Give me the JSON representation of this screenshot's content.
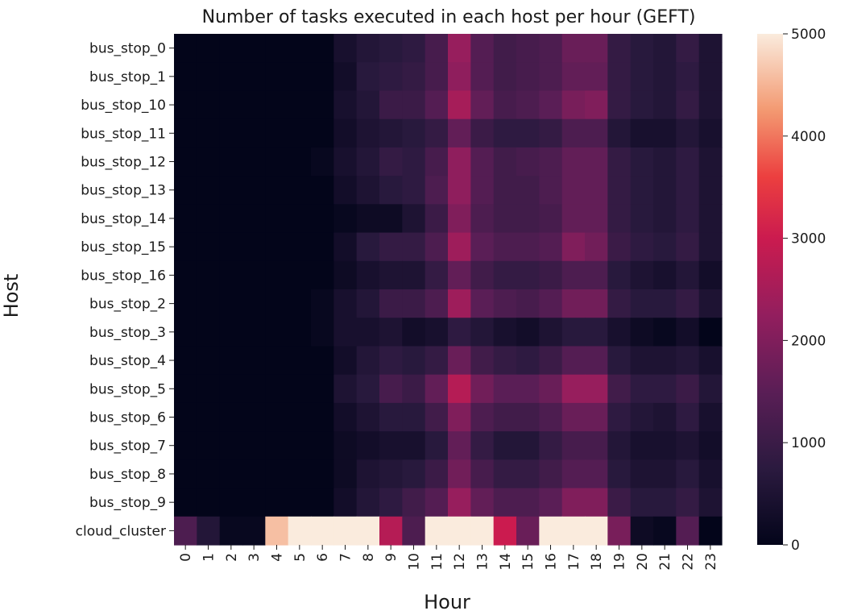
{
  "chart_data": {
    "type": "heatmap",
    "title": "Number of tasks executed in each host per hour (GEFT)",
    "xlabel": "Hour",
    "ylabel": "Host",
    "x": [
      "0",
      "1",
      "2",
      "3",
      "4",
      "5",
      "6",
      "7",
      "8",
      "9",
      "10",
      "11",
      "12",
      "13",
      "14",
      "15",
      "16",
      "17",
      "18",
      "19",
      "20",
      "21",
      "22",
      "23"
    ],
    "y": [
      "bus_stop_0",
      "bus_stop_1",
      "bus_stop_10",
      "bus_stop_11",
      "bus_stop_12",
      "bus_stop_13",
      "bus_stop_14",
      "bus_stop_15",
      "bus_stop_16",
      "bus_stop_2",
      "bus_stop_3",
      "bus_stop_4",
      "bus_stop_5",
      "bus_stop_6",
      "bus_stop_7",
      "bus_stop_8",
      "bus_stop_9",
      "cloud_cluster"
    ],
    "z": [
      [
        0,
        0,
        0,
        0,
        0,
        0,
        0,
        400,
        600,
        700,
        800,
        1200,
        2300,
        1400,
        1100,
        1200,
        1300,
        1700,
        1700,
        900,
        700,
        600,
        900,
        500
      ],
      [
        0,
        0,
        0,
        0,
        0,
        0,
        0,
        300,
        700,
        800,
        900,
        1200,
        2200,
        1400,
        1100,
        1200,
        1300,
        1600,
        1600,
        900,
        700,
        600,
        800,
        500
      ],
      [
        0,
        0,
        0,
        0,
        0,
        0,
        0,
        400,
        600,
        1000,
        1000,
        1400,
        2500,
        1600,
        1200,
        1300,
        1500,
        1900,
        2000,
        900,
        700,
        600,
        900,
        500
      ],
      [
        0,
        0,
        0,
        0,
        0,
        0,
        0,
        300,
        500,
        600,
        700,
        900,
        1600,
        1000,
        800,
        800,
        900,
        1300,
        1300,
        600,
        400,
        400,
        600,
        400
      ],
      [
        0,
        0,
        0,
        0,
        0,
        0,
        100,
        400,
        600,
        900,
        800,
        1200,
        2200,
        1400,
        1100,
        1200,
        1300,
        1600,
        1600,
        900,
        700,
        600,
        800,
        500
      ],
      [
        0,
        0,
        0,
        0,
        0,
        0,
        0,
        300,
        500,
        700,
        800,
        1300,
        2200,
        1400,
        1100,
        1100,
        1300,
        1600,
        1600,
        900,
        700,
        600,
        800,
        500
      ],
      [
        0,
        0,
        0,
        0,
        0,
        0,
        0,
        100,
        200,
        200,
        500,
        1000,
        2000,
        1300,
        1100,
        1100,
        1200,
        1600,
        1600,
        900,
        700,
        600,
        800,
        500
      ],
      [
        0,
        0,
        0,
        0,
        0,
        0,
        0,
        300,
        700,
        900,
        900,
        1300,
        2400,
        1500,
        1300,
        1300,
        1400,
        2000,
        1800,
        1000,
        800,
        700,
        900,
        500
      ],
      [
        0,
        0,
        0,
        0,
        0,
        0,
        0,
        200,
        400,
        500,
        500,
        900,
        1600,
        1100,
        900,
        900,
        1000,
        1300,
        1300,
        700,
        500,
        400,
        600,
        300
      ],
      [
        0,
        0,
        0,
        0,
        0,
        0,
        100,
        400,
        600,
        1000,
        1000,
        1300,
        2400,
        1500,
        1300,
        1200,
        1400,
        1800,
        1800,
        900,
        700,
        700,
        900,
        500
      ],
      [
        0,
        0,
        0,
        0,
        0,
        0,
        100,
        400,
        400,
        500,
        300,
        400,
        800,
        600,
        400,
        300,
        500,
        700,
        700,
        400,
        200,
        100,
        300,
        0
      ],
      [
        0,
        0,
        0,
        0,
        0,
        0,
        0,
        300,
        600,
        800,
        700,
        900,
        1700,
        1100,
        900,
        800,
        1000,
        1400,
        1400,
        700,
        500,
        500,
        600,
        400
      ],
      [
        0,
        0,
        0,
        0,
        0,
        0,
        0,
        500,
        700,
        1200,
        1000,
        1600,
        2700,
        1800,
        1500,
        1500,
        1700,
        2300,
        2300,
        1100,
        800,
        800,
        1000,
        600
      ],
      [
        0,
        0,
        0,
        0,
        0,
        0,
        0,
        300,
        500,
        700,
        700,
        1100,
        2000,
        1300,
        1100,
        1100,
        1300,
        1700,
        1700,
        800,
        600,
        500,
        800,
        400
      ],
      [
        0,
        0,
        0,
        0,
        0,
        0,
        0,
        200,
        300,
        400,
        400,
        700,
        1600,
        900,
        600,
        600,
        900,
        1200,
        1200,
        600,
        400,
        400,
        500,
        300
      ],
      [
        0,
        0,
        0,
        0,
        0,
        0,
        0,
        200,
        500,
        600,
        700,
        1000,
        1800,
        1200,
        900,
        900,
        1100,
        1400,
        1400,
        700,
        500,
        500,
        700,
        400
      ],
      [
        0,
        0,
        0,
        0,
        0,
        0,
        0,
        300,
        600,
        800,
        1100,
        1400,
        2300,
        1600,
        1300,
        1300,
        1500,
        2000,
        2000,
        1000,
        700,
        700,
        900,
        500
      ],
      [
        1300,
        600,
        100,
        100,
        4600,
        5000,
        5000,
        5000,
        5000,
        2700,
        1300,
        5000,
        5000,
        5000,
        3000,
        1700,
        5000,
        5000,
        5000,
        1900,
        200,
        100,
        1400,
        0
      ]
    ],
    "colorbar": {
      "min": 0,
      "max": 5000,
      "ticks": [
        "0",
        "1000",
        "2000",
        "3000",
        "4000",
        "5000"
      ],
      "colormap": "rocket"
    }
  }
}
